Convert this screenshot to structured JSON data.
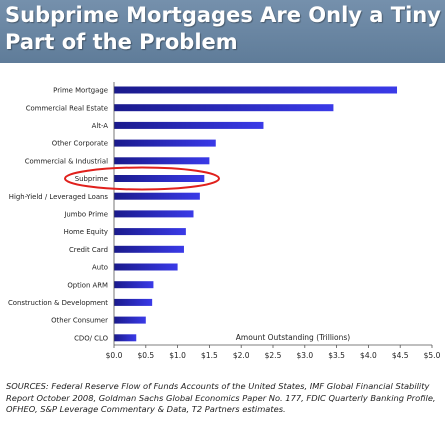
{
  "header": {
    "title_line1": "Subprime Mortgages Are Only a Tiny",
    "title_line2": "Part of the Problem"
  },
  "colors": {
    "banner": "#6b87a3",
    "bar_dark": "#1a1a8c",
    "bar_light": "#3a3ae8",
    "highlight_ellipse": "#e0201c"
  },
  "chart_data": {
    "type": "bar",
    "orientation": "horizontal",
    "categories": [
      "Prime Mortgage",
      "Commercial Real Estate",
      "Alt-A",
      "Other Corporate",
      "Commercial & Industrial",
      "Subprime",
      "High-Yield / Leveraged Loans",
      "Jumbo Prime",
      "Home Equity",
      "Credit Card",
      "Auto",
      "Option ARM",
      "Construction & Development",
      "Other Consumer",
      "CDO/ CLO"
    ],
    "values": [
      4.45,
      3.45,
      2.35,
      1.6,
      1.5,
      1.42,
      1.35,
      1.25,
      1.13,
      1.1,
      1.0,
      0.62,
      0.6,
      0.5,
      0.35
    ],
    "xlabel": "Amount Outstanding (Trillions)",
    "xlim": [
      0,
      5
    ],
    "xticks": [
      "$0.0",
      "$0.5",
      "$1.0",
      "$1.5",
      "$2.0",
      "$2.5",
      "$3.0",
      "$3.5",
      "$4.0",
      "$4.5",
      "$5.0"
    ],
    "highlighted_category": "Subprime",
    "grid": false
  },
  "source": "SOURCES: Federal Reserve Flow of Funds Accounts of the United States, IMF Global Financial Stability Report October 2008, Goldman Sachs Global Economics Paper No. 177, FDIC Quarterly Banking Profile, OFHEO, S&P Leverage Commentary & Data, T2 Partners estimates."
}
